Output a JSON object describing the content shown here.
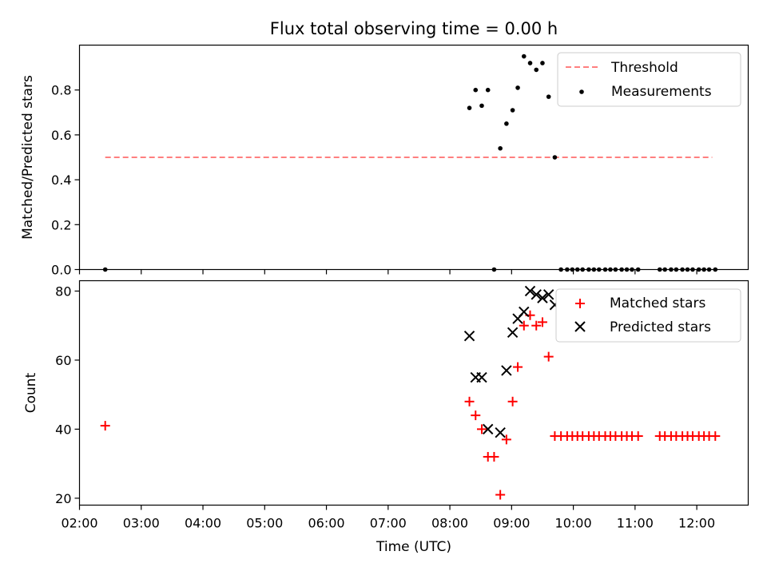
{
  "chart_data": [
    {
      "type": "scatter",
      "title": "Flux total observing time = 0.00 h",
      "ylabel": "Matched/Predicted stars",
      "xlim": [
        "02:00",
        "12:50"
      ],
      "ylim": [
        0,
        1.0
      ],
      "yticks": [
        "0.0",
        "0.2",
        "0.4",
        "0.6",
        "0.8"
      ],
      "xticks": [
        "02:00",
        "03:00",
        "04:00",
        "05:00",
        "06:00",
        "07:00",
        "08:00",
        "09:00",
        "10:00",
        "11:00",
        "12:00"
      ],
      "xticklabels_visible": false,
      "legend": {
        "placement": "top-right",
        "entries": [
          "Threshold",
          "Measurements"
        ]
      },
      "series": [
        {
          "name": "Threshold",
          "style": "dashed-line",
          "color": "#ff7f7f",
          "x": [
            "02:25",
            "12:15"
          ],
          "y": [
            0.5,
            0.5
          ]
        },
        {
          "name": "Measurements",
          "style": "dot",
          "color": "#000000",
          "x": [
            "02:25",
            "08:19",
            "08:25",
            "08:31",
            "08:37",
            "08:43",
            "08:49",
            "08:55",
            "09:01",
            "09:06",
            "09:12",
            "09:18",
            "09:24",
            "09:30",
            "09:36",
            "09:42",
            "09:48",
            "09:54",
            "09:59",
            "10:04",
            "10:09",
            "10:15",
            "10:20",
            "10:25",
            "10:31",
            "10:36",
            "10:41",
            "10:47",
            "10:52",
            "10:57",
            "11:03",
            "11:24",
            "11:29",
            "11:35",
            "11:40",
            "11:46",
            "11:51",
            "11:56",
            "12:02",
            "12:07",
            "12:12",
            "12:18"
          ],
          "y": [
            0.0,
            0.72,
            0.8,
            0.73,
            0.8,
            0.0,
            0.54,
            0.65,
            0.71,
            0.81,
            0.95,
            0.92,
            0.89,
            0.92,
            0.77,
            0.5,
            0.0,
            0.0,
            0.0,
            0.0,
            0.0,
            0.0,
            0.0,
            0.0,
            0.0,
            0.0,
            0.0,
            0.0,
            0.0,
            0.0,
            0.0,
            0.0,
            0.0,
            0.0,
            0.0,
            0.0,
            0.0,
            0.0,
            0.0,
            0.0,
            0.0,
            0.0
          ]
        }
      ]
    },
    {
      "type": "scatter",
      "xlabel": "Time (UTC)",
      "ylabel": "Count",
      "xlim": [
        "02:00",
        "12:50"
      ],
      "ylim": [
        18,
        83
      ],
      "yticks": [
        "20",
        "40",
        "60",
        "80"
      ],
      "xticks": [
        "02:00",
        "03:00",
        "04:00",
        "05:00",
        "06:00",
        "07:00",
        "08:00",
        "09:00",
        "10:00",
        "11:00",
        "12:00"
      ],
      "legend": {
        "placement": "top-right",
        "entries": [
          "Matched stars",
          "Predicted stars"
        ]
      },
      "series": [
        {
          "name": "Matched stars",
          "marker": "plus",
          "color": "#ff0000",
          "x": [
            "02:25",
            "08:19",
            "08:25",
            "08:31",
            "08:37",
            "08:43",
            "08:49",
            "08:55",
            "09:01",
            "09:06",
            "09:12",
            "09:18",
            "09:24",
            "09:30",
            "09:36",
            "09:42",
            "09:48",
            "09:54",
            "09:59",
            "10:04",
            "10:09",
            "10:15",
            "10:20",
            "10:25",
            "10:31",
            "10:36",
            "10:41",
            "10:47",
            "10:52",
            "10:57",
            "11:03",
            "11:24",
            "11:29",
            "11:35",
            "11:40",
            "11:46",
            "11:51",
            "11:56",
            "12:02",
            "12:07",
            "12:12",
            "12:18"
          ],
          "y": [
            41,
            48,
            44,
            40,
            32,
            32,
            21,
            37,
            48,
            58,
            70,
            73,
            70,
            71,
            61,
            38,
            38,
            38,
            38,
            38,
            38,
            38,
            38,
            38,
            38,
            38,
            38,
            38,
            38,
            38,
            38,
            38,
            38,
            38,
            38,
            38,
            38,
            38,
            38,
            38,
            38,
            38
          ]
        },
        {
          "name": "Predicted stars",
          "marker": "x",
          "color": "#000000",
          "x": [
            "08:19",
            "08:25",
            "08:31",
            "08:37",
            "08:49",
            "08:55",
            "09:01",
            "09:06",
            "09:12",
            "09:18",
            "09:24",
            "09:30",
            "09:36",
            "09:42"
          ],
          "y": [
            67,
            55,
            55,
            40,
            39,
            57,
            68,
            72,
            74,
            80,
            79,
            78,
            79,
            76
          ]
        }
      ]
    }
  ]
}
